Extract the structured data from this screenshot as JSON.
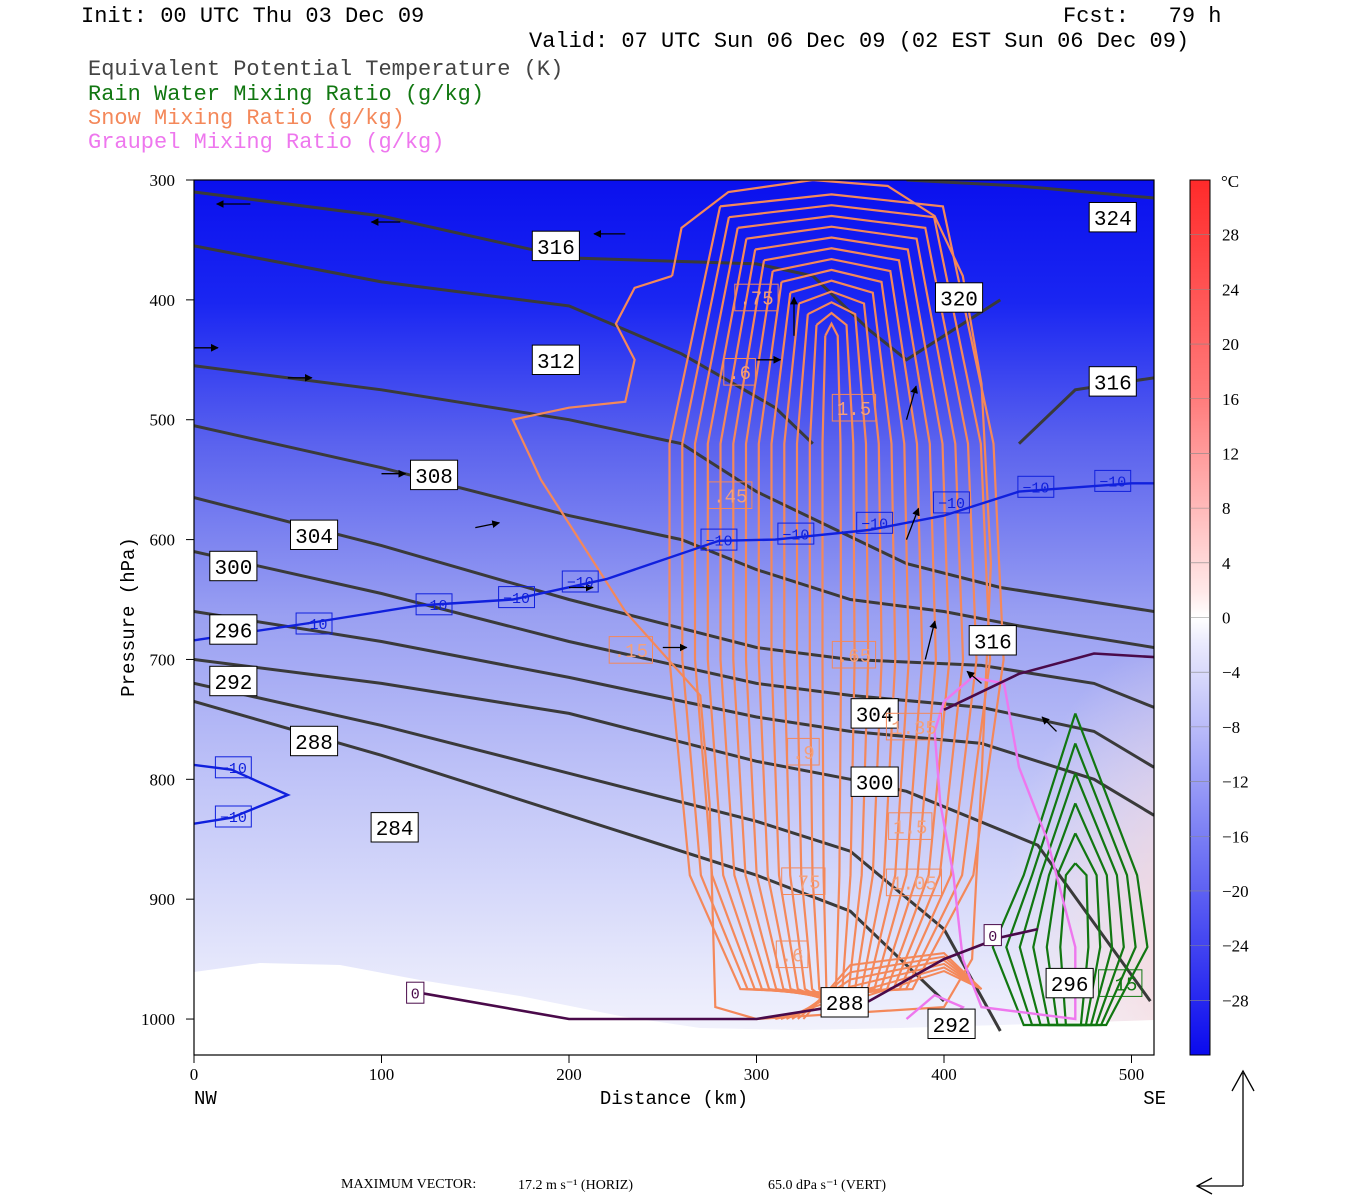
{
  "header": {
    "init": "Init: 00 UTC Thu 03 Dec 09",
    "fcst": "Fcst:   79 h",
    "valid": "Valid: 07 UTC Sun 06 Dec 09 (02 EST Sun 06 Dec 09)"
  },
  "legend": [
    {
      "label": "Equivalent Potential Temperature (K)",
      "color": "#444444"
    },
    {
      "label": "Rain Water Mixing Ratio (g/kg)",
      "color": "#117711"
    },
    {
      "label": "Snow Mixing Ratio (g/kg)",
      "color": "#f4885a"
    },
    {
      "label": "Graupel Mixing Ratio (g/kg)",
      "color": "#ee77ee"
    }
  ],
  "footer": {
    "max_vector_label": "MAXIMUM VECTOR:",
    "horiz": "17.2 m s⁻¹ (HORIZ)",
    "vert": "65.0 dPa s⁻¹ (VERT)"
  },
  "chart_data": {
    "type": "heatmap",
    "title": "",
    "xlabel": "Distance (km)",
    "ylabel": "Pressure (hPa)",
    "xlim": [
      0,
      512
    ],
    "ylim": [
      1030,
      300
    ],
    "x_ticks": [
      0,
      100,
      200,
      300,
      400,
      500
    ],
    "y_ticks": [
      300,
      400,
      500,
      600,
      700,
      800,
      900,
      1000
    ],
    "x_endpoints": {
      "left": "NW",
      "right": "SE"
    },
    "colorbar": {
      "unit": "°C",
      "ticks": [
        28,
        24,
        20,
        16,
        12,
        8,
        4,
        0,
        -4,
        -8,
        -12,
        -16,
        -20,
        -24,
        -28
      ],
      "min": -32,
      "max": 32
    },
    "theta_e_lines": [
      {
        "label": "284",
        "points": [
          [
            0,
            735
          ],
          [
            100,
            780
          ],
          [
            200,
            830
          ],
          [
            300,
            880
          ],
          [
            350,
            910
          ],
          [
            400,
            985
          ]
        ]
      },
      {
        "label": "288",
        "points": [
          [
            0,
            720
          ],
          [
            100,
            755
          ],
          [
            200,
            795
          ],
          [
            300,
            835
          ],
          [
            350,
            860
          ],
          [
            400,
            925
          ],
          [
            430,
            1010
          ]
        ]
      },
      {
        "label": "292",
        "points": [
          [
            0,
            700
          ],
          [
            100,
            720
          ],
          [
            200,
            745
          ],
          [
            300,
            785
          ],
          [
            350,
            800
          ],
          [
            380,
            810
          ],
          [
            450,
            855
          ],
          [
            510,
            985
          ]
        ]
      },
      {
        "label": "296",
        "points": [
          [
            0,
            660
          ],
          [
            100,
            685
          ],
          [
            200,
            715
          ],
          [
            300,
            748
          ],
          [
            350,
            760
          ],
          [
            420,
            770
          ],
          [
            480,
            800
          ],
          [
            512,
            830
          ]
        ]
      },
      {
        "label": "300",
        "points": [
          [
            0,
            610
          ],
          [
            100,
            645
          ],
          [
            200,
            685
          ],
          [
            300,
            720
          ],
          [
            350,
            730
          ],
          [
            420,
            740
          ],
          [
            480,
            760
          ],
          [
            512,
            790
          ]
        ]
      },
      {
        "label": "304",
        "points": [
          [
            0,
            565
          ],
          [
            100,
            605
          ],
          [
            200,
            650
          ],
          [
            300,
            690
          ],
          [
            350,
            700
          ],
          [
            420,
            705
          ],
          [
            480,
            720
          ],
          [
            512,
            740
          ]
        ]
      },
      {
        "label": "308",
        "points": [
          [
            0,
            505
          ],
          [
            100,
            540
          ],
          [
            200,
            580
          ],
          [
            260,
            600
          ],
          [
            300,
            625
          ],
          [
            350,
            650
          ],
          [
            400,
            660
          ],
          [
            440,
            672
          ],
          [
            512,
            690
          ]
        ]
      },
      {
        "label": "312",
        "points": [
          [
            0,
            455
          ],
          [
            100,
            475
          ],
          [
            200,
            500
          ],
          [
            260,
            520
          ],
          [
            300,
            560
          ],
          [
            340,
            590
          ],
          [
            380,
            620
          ],
          [
            430,
            640
          ],
          [
            512,
            660
          ]
        ]
      },
      {
        "label": "316",
        "points": [
          [
            0,
            355
          ],
          [
            100,
            385
          ],
          [
            200,
            405
          ],
          [
            260,
            445
          ],
          [
            310,
            490
          ],
          [
            330,
            520
          ]
        ]
      },
      {
        "label": "316",
        "points": [
          [
            440,
            520
          ],
          [
            470,
            475
          ],
          [
            512,
            465
          ]
        ]
      },
      {
        "label": "320",
        "points": [
          [
            0,
            310
          ],
          [
            100,
            330
          ],
          [
            200,
            365
          ],
          [
            300,
            370
          ],
          [
            330,
            380
          ],
          [
            360,
            425
          ],
          [
            380,
            450
          ],
          [
            400,
            430
          ],
          [
            430,
            400
          ]
        ]
      },
      {
        "label": "324",
        "points": [
          [
            380,
            300
          ],
          [
            440,
            305
          ],
          [
            512,
            315
          ]
        ]
      }
    ],
    "theta_e_labels": [
      {
        "text": "316",
        "x": 193,
        "y": 355
      },
      {
        "text": "312",
        "x": 193,
        "y": 450
      },
      {
        "text": "308",
        "x": 128,
        "y": 546
      },
      {
        "text": "304",
        "x": 64,
        "y": 596
      },
      {
        "text": "300",
        "x": 21,
        "y": 622
      },
      {
        "text": "296",
        "x": 21,
        "y": 675
      },
      {
        "text": "292",
        "x": 21,
        "y": 718
      },
      {
        "text": "288",
        "x": 64,
        "y": 768
      },
      {
        "text": "284",
        "x": 107,
        "y": 840
      },
      {
        "text": "320",
        "x": 408,
        "y": 398
      },
      {
        "text": "324",
        "x": 490,
        "y": 331
      },
      {
        "text": "316",
        "x": 490,
        "y": 468
      },
      {
        "text": "316",
        "x": 426,
        "y": 684
      },
      {
        "text": "304",
        "x": 363,
        "y": 745
      },
      {
        "text": "300",
        "x": 363,
        "y": 802
      },
      {
        "text": "292",
        "x": 404,
        "y": 1004
      },
      {
        "text": "296",
        "x": 467,
        "y": 970
      },
      {
        "text": "288",
        "x": 347,
        "y": 986
      }
    ],
    "isotherm_m10": [
      {
        "points": [
          [
            0,
            684
          ],
          [
            60,
            670
          ],
          [
            120,
            655
          ],
          [
            170,
            650
          ],
          [
            220,
            633
          ],
          [
            280,
            601
          ],
          [
            310,
            600
          ],
          [
            360,
            592
          ],
          [
            400,
            580
          ],
          [
            440,
            560
          ],
          [
            500,
            553
          ],
          [
            512,
            553
          ]
        ]
      },
      {
        "points": [
          [
            0,
            788
          ],
          [
            20,
            792
          ],
          [
            50,
            813
          ],
          [
            20,
            832
          ],
          [
            0,
            837
          ]
        ]
      }
    ],
    "isotherm_labels": [
      {
        "text": "−10",
        "x": 64,
        "y": 670
      },
      {
        "text": "−10",
        "x": 128,
        "y": 654
      },
      {
        "text": "−10",
        "x": 172,
        "y": 648
      },
      {
        "text": "−10",
        "x": 206,
        "y": 635
      },
      {
        "text": "−10",
        "x": 280,
        "y": 600
      },
      {
        "text": "−10",
        "x": 321,
        "y": 595
      },
      {
        "text": "−10",
        "x": 363,
        "y": 586
      },
      {
        "text": "−10",
        "x": 404,
        "y": 569
      },
      {
        "text": "−10",
        "x": 449,
        "y": 556
      },
      {
        "text": "−10",
        "x": 490,
        "y": 551
      },
      {
        "text": "−10",
        "x": 21,
        "y": 790
      },
      {
        "text": "−10",
        "x": 21,
        "y": 831
      }
    ],
    "zero_isotherm": [
      {
        "points": [
          [
            120,
            978
          ],
          [
            200,
            1000
          ],
          [
            300,
            1000
          ],
          [
            360,
            985
          ],
          [
            400,
            950
          ],
          [
            430,
            932
          ],
          [
            450,
            925
          ]
        ]
      },
      {
        "points": [
          [
            400,
            742
          ],
          [
            440,
            712
          ],
          [
            480,
            695
          ],
          [
            512,
            698
          ]
        ]
      }
    ],
    "zero_labels": [
      {
        "text": "0",
        "x": 118,
        "y": 978
      },
      {
        "text": "0",
        "x": 426,
        "y": 930
      }
    ],
    "snow_labels": [
      {
        "text": ".15",
        "x": 233,
        "y": 692
      },
      {
        "text": ".45",
        "x": 286,
        "y": 563
      },
      {
        "text": ".6",
        "x": 291,
        "y": 460
      },
      {
        "text": ".75",
        "x": 300,
        "y": 398
      },
      {
        "text": "1.5",
        "x": 352,
        "y": 490
      },
      {
        "text": ".65",
        "x": 352,
        "y": 696
      },
      {
        "text": ".9",
        "x": 325,
        "y": 777
      },
      {
        "text": "1.35",
        "x": 384,
        "y": 756
      },
      {
        "text": "1.5",
        "x": 382,
        "y": 839
      },
      {
        "text": "1.05",
        "x": 384,
        "y": 886
      },
      {
        "text": ".75",
        "x": 325,
        "y": 885
      },
      {
        "text": ".6",
        "x": 319,
        "y": 946
      }
    ],
    "rain_labels": [
      {
        "text": ".15",
        "x": 494,
        "y": 970
      }
    ],
    "wind_vectors_sample": [
      [
        0,
        440,
        1,
        0
      ],
      [
        50,
        465,
        1,
        0
      ],
      [
        100,
        545,
        1,
        0
      ],
      [
        150,
        590,
        1,
        -0.2
      ],
      [
        200,
        640,
        1,
        0
      ],
      [
        250,
        690,
        1,
        0
      ],
      [
        300,
        450,
        1,
        0
      ],
      [
        320,
        430,
        0,
        -1.6
      ],
      [
        380,
        500,
        0.4,
        -1.4
      ],
      [
        380,
        600,
        0.5,
        -1.3
      ],
      [
        390,
        700,
        0.4,
        -1.6
      ],
      [
        420,
        720,
        -0.6,
        -0.5
      ],
      [
        460,
        760,
        -0.6,
        -0.6
      ],
      [
        30,
        320,
        -1.4,
        0
      ],
      [
        110,
        335,
        -1.2,
        0
      ],
      [
        230,
        345,
        -1.3,
        0
      ]
    ]
  }
}
